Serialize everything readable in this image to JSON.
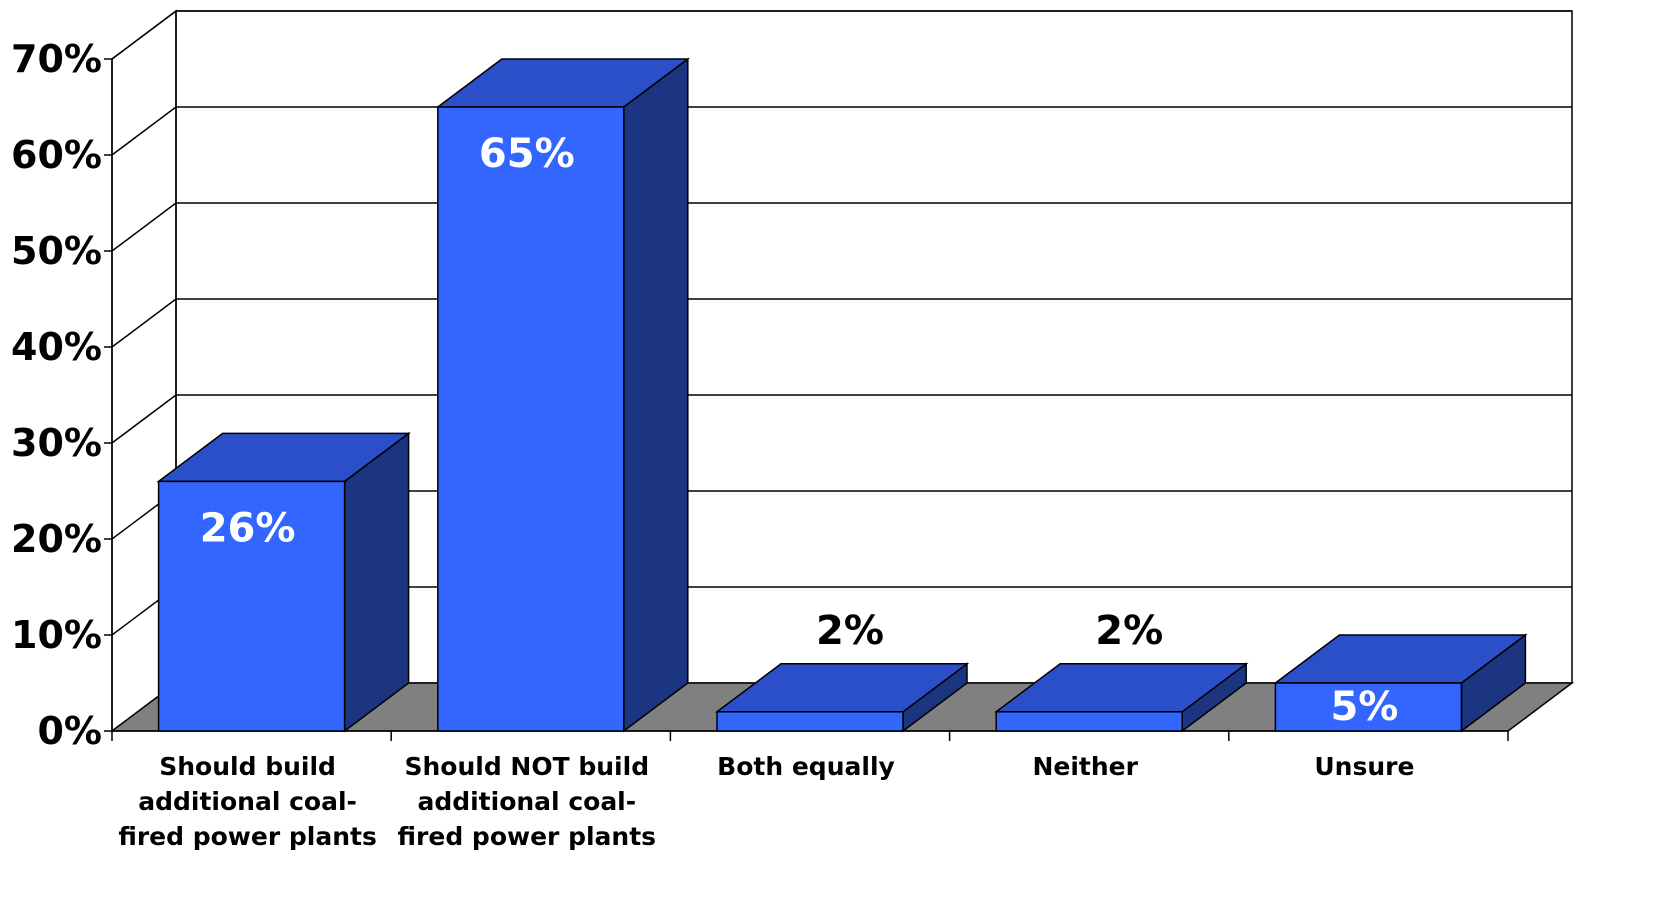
{
  "chart_data": {
    "type": "bar",
    "style": "3d-column",
    "categories": [
      [
        "Should build",
        "additional coal-",
        "fired power plants"
      ],
      [
        "Should NOT build",
        "additional coal-",
        "fired power plants"
      ],
      [
        "Both equally"
      ],
      [
        "Neither"
      ],
      [
        "Unsure"
      ]
    ],
    "values": [
      26,
      65,
      2,
      2,
      5
    ],
    "data_labels": [
      "26%",
      "65%",
      "2%",
      "2%",
      "5%"
    ],
    "data_label_placement": [
      "inside",
      "inside",
      "above",
      "above",
      "inside"
    ],
    "ylim": [
      0,
      70
    ],
    "y_ticks": [
      0,
      10,
      20,
      30,
      40,
      50,
      60,
      70
    ],
    "y_tick_labels": [
      "0%",
      "10%",
      "20%",
      "30%",
      "40%",
      "50%",
      "60%",
      "70%"
    ],
    "title": "",
    "xlabel": "",
    "ylabel": "",
    "grid": true,
    "legend": "none",
    "colors": {
      "bar_front": "#3366FF",
      "bar_top": "#2B4FC8",
      "bar_side": "#1B3580",
      "floor": "#808080",
      "label_inside": "#FFFFFF",
      "label_above": "#000000",
      "grid": "#000000"
    }
  }
}
